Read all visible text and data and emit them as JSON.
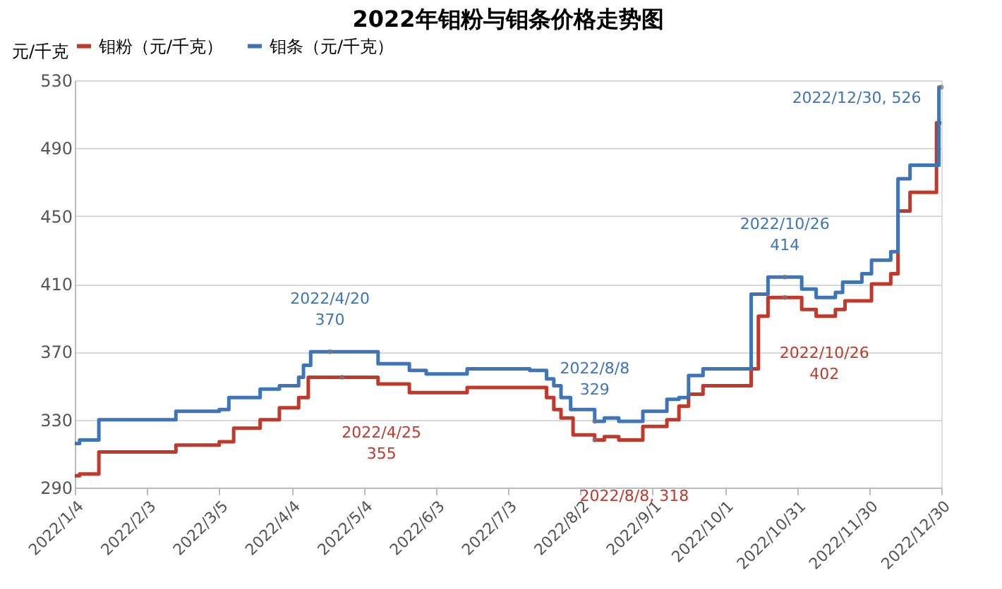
{
  "chart_data": {
    "type": "step",
    "title": "2022年钼粉与钼条价格走势图",
    "ylabel": "元/千克",
    "xlim": [
      "2022-01-04",
      "2022-12-30"
    ],
    "xticks": [
      {
        "value": "2022-01-04",
        "label": "2022/1/4"
      },
      {
        "value": "2022-02-03",
        "label": "2022/2/3"
      },
      {
        "value": "2022-03-05",
        "label": "2022/3/5"
      },
      {
        "value": "2022-04-04",
        "label": "2022/4/4"
      },
      {
        "value": "2022-05-04",
        "label": "2022/5/4"
      },
      {
        "value": "2022-06-03",
        "label": "2022/6/3"
      },
      {
        "value": "2022-07-03",
        "label": "2022/7/3"
      },
      {
        "value": "2022-08-02",
        "label": "2022/8/2"
      },
      {
        "value": "2022-09-01",
        "label": "2022/9/1"
      },
      {
        "value": "2022-10-01",
        "label": "2022/10/1"
      },
      {
        "value": "2022-10-31",
        "label": "2022/10/31"
      },
      {
        "value": "2022-11-30",
        "label": "2022/11/30"
      },
      {
        "value": "2022-12-30",
        "label": "2022/12/30"
      }
    ],
    "ylim": [
      290,
      530
    ],
    "yticks": [
      290,
      330,
      370,
      410,
      450,
      490,
      530
    ],
    "grid": "y",
    "legend": "top",
    "series": [
      {
        "name": "钼粉（元/千克）",
        "color": "#c0392b",
        "x": [
          "2022-01-04",
          "2022-01-06",
          "2022-01-14",
          "2022-02-15",
          "2022-03-05",
          "2022-03-11",
          "2022-03-22",
          "2022-03-30",
          "2022-04-07",
          "2022-04-11",
          "2022-05-10",
          "2022-05-23",
          "2022-06-16",
          "2022-07-19",
          "2022-07-22",
          "2022-07-25",
          "2022-07-30",
          "2022-08-08",
          "2022-08-12",
          "2022-08-18",
          "2022-08-28",
          "2022-09-07",
          "2022-09-12",
          "2022-09-16",
          "2022-09-22",
          "2022-10-12",
          "2022-10-15",
          "2022-10-19",
          "2022-11-02",
          "2022-11-08",
          "2022-11-16",
          "2022-11-20",
          "2022-12-01",
          "2022-12-09",
          "2022-12-12",
          "2022-12-17",
          "2022-12-28",
          "2022-12-30"
        ],
        "values": [
          297,
          298,
          311,
          315,
          317,
          325,
          330,
          337,
          343,
          355,
          351,
          346,
          349,
          343,
          336,
          331,
          321,
          318,
          320,
          318,
          326,
          330,
          338,
          345,
          350,
          360,
          391,
          402,
          395,
          391,
          395,
          400,
          410,
          416,
          453,
          464,
          505,
          505
        ]
      },
      {
        "name": "钼条（元/千克）",
        "color": "#3e74b8",
        "x": [
          "2022-01-04",
          "2022-01-06",
          "2022-01-14",
          "2022-02-15",
          "2022-03-05",
          "2022-03-09",
          "2022-03-22",
          "2022-03-30",
          "2022-04-07",
          "2022-04-09",
          "2022-04-12",
          "2022-05-10",
          "2022-05-23",
          "2022-05-30",
          "2022-06-16",
          "2022-07-12",
          "2022-07-19",
          "2022-07-22",
          "2022-07-25",
          "2022-07-29",
          "2022-08-08",
          "2022-08-12",
          "2022-08-18",
          "2022-08-28",
          "2022-09-07",
          "2022-09-12",
          "2022-09-16",
          "2022-09-22",
          "2022-10-12",
          "2022-10-19",
          "2022-11-02",
          "2022-11-08",
          "2022-11-16",
          "2022-11-19",
          "2022-11-27",
          "2022-12-01",
          "2022-12-09",
          "2022-12-12",
          "2022-12-17",
          "2022-12-29",
          "2022-12-30"
        ],
        "values": [
          316,
          318,
          330,
          335,
          336,
          343,
          348,
          350,
          355,
          362,
          370,
          363,
          359,
          357,
          360,
          359,
          354,
          350,
          343,
          336,
          329,
          331,
          329,
          335,
          342,
          343,
          356,
          360,
          404,
          414,
          407,
          402,
          405,
          411,
          416,
          424,
          429,
          472,
          480,
          526,
          526
        ]
      }
    ],
    "annotations": [
      {
        "text": "2022/4/20\n370",
        "x": "2022-04-20",
        "y": 370
      },
      {
        "text": "2022/4/25\n355",
        "x": "2022-04-25",
        "y": 355
      },
      {
        "text": "2022/8/8\n329",
        "x": "2022-08-08",
        "y": 329
      },
      {
        "text": "2022/8/8, 318",
        "x": "2022-08-08",
        "y": 318
      },
      {
        "text": "2022/10/26\n414",
        "x": "2022-10-26",
        "y": 414
      },
      {
        "text": "2022/10/26\n402",
        "x": "2022-10-26",
        "y": 402
      },
      {
        "text": "2022/12/30, 526",
        "x": "2022-12-30",
        "y": 526
      }
    ]
  }
}
